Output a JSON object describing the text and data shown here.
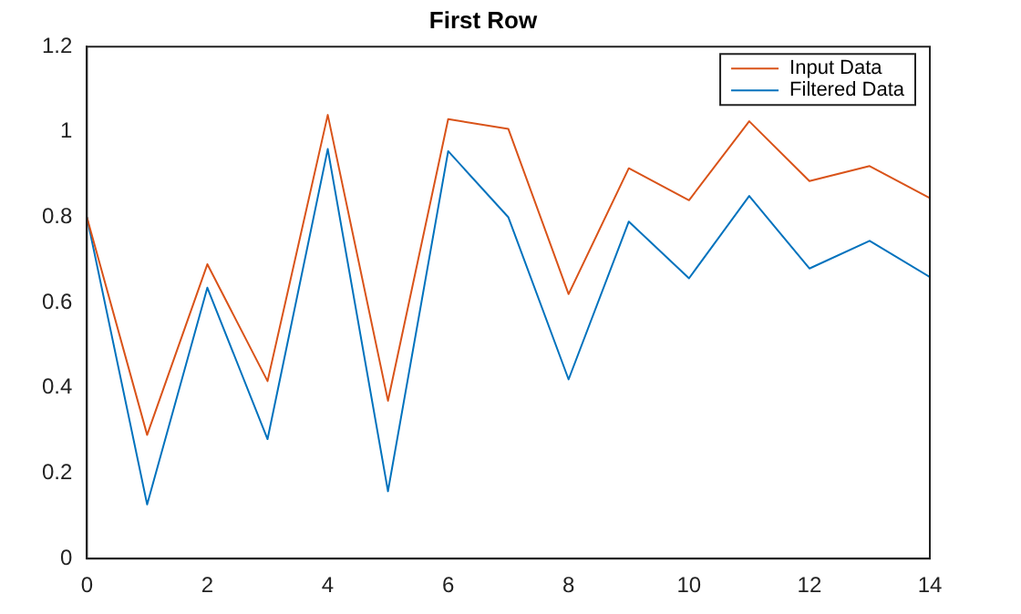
{
  "chart_data": {
    "type": "line",
    "title": "First Row",
    "x": [
      0,
      1,
      2,
      3,
      4,
      5,
      6,
      7,
      8,
      9,
      10,
      11,
      12,
      13,
      14
    ],
    "series": [
      {
        "name": "Input Data",
        "color": "#d95319",
        "values": [
          0.8,
          0.29,
          0.69,
          0.416,
          1.04,
          0.37,
          1.03,
          1.007,
          0.62,
          0.915,
          0.84,
          1.025,
          0.885,
          0.92,
          0.845
        ]
      },
      {
        "name": "Filtered Data",
        "color": "#0072bd",
        "values": [
          0.8,
          0.127,
          0.635,
          0.28,
          0.96,
          0.158,
          0.955,
          0.8,
          0.42,
          0.79,
          0.657,
          0.85,
          0.68,
          0.745,
          0.66
        ]
      }
    ],
    "xlim": [
      0,
      14
    ],
    "xticks": [
      0,
      2,
      4,
      6,
      8,
      10,
      12,
      14
    ],
    "ylim": [
      0,
      1.2
    ],
    "yticks": [
      0,
      0.2,
      0.4,
      0.6,
      0.8,
      1,
      1.2
    ],
    "grid": false,
    "legend": "top right",
    "marker": "none",
    "line_style": "solid"
  }
}
